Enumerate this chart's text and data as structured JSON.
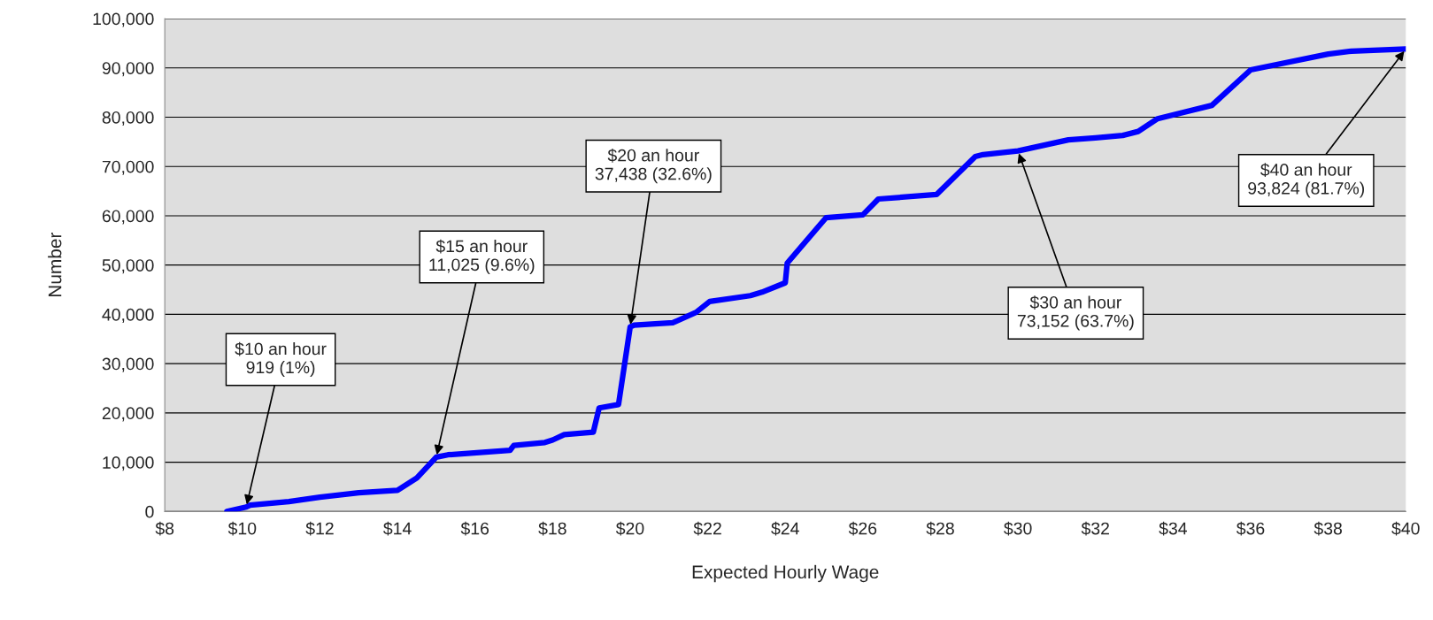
{
  "chart_data": {
    "type": "line",
    "xlabel": "Expected Hourly Wage",
    "ylabel": "Number",
    "x": [
      9.6,
      10.1,
      10.2,
      11.2,
      12,
      13,
      14,
      14.5,
      15,
      15.3,
      16.2,
      16.9,
      17,
      17.8,
      18,
      18.3,
      19.05,
      19.2,
      19.7,
      20,
      20.1,
      21.1,
      21.7,
      22.05,
      23.1,
      23.4,
      24,
      24.05,
      25.05,
      26,
      26.4,
      27.9,
      28.9,
      29.1,
      30,
      31.3,
      32,
      32.7,
      33.1,
      33.6,
      35,
      36,
      38,
      38.6,
      40
    ],
    "series": [
      {
        "color": "#0000ff",
        "values": [
          0,
          919,
          1300,
          2000,
          2900,
          3800,
          4300,
          6800,
          11025,
          11500,
          12000,
          12400,
          13400,
          14000,
          14500,
          15600,
          16100,
          21000,
          21700,
          37438,
          37800,
          38300,
          40400,
          42600,
          43800,
          44500,
          46400,
          50400,
          59600,
          60200,
          63400,
          64300,
          72000,
          72400,
          73152,
          75400,
          75800,
          76300,
          77100,
          79700,
          82400,
          89600,
          92800,
          93400,
          93824
        ]
      }
    ],
    "xlim": [
      8,
      40
    ],
    "xticks": [
      {
        "value": 8,
        "label": "$8"
      },
      {
        "value": 10,
        "label": "$10"
      },
      {
        "value": 12,
        "label": "$12"
      },
      {
        "value": 14,
        "label": "$14"
      },
      {
        "value": 16,
        "label": "$16"
      },
      {
        "value": 18,
        "label": "$18"
      },
      {
        "value": 20,
        "label": "$20"
      },
      {
        "value": 22,
        "label": "$22"
      },
      {
        "value": 24,
        "label": "$24"
      },
      {
        "value": 26,
        "label": "$26"
      },
      {
        "value": 28,
        "label": "$28"
      },
      {
        "value": 30,
        "label": "$30"
      },
      {
        "value": 32,
        "label": "$32"
      },
      {
        "value": 34,
        "label": "$34"
      },
      {
        "value": 36,
        "label": "$36"
      },
      {
        "value": 38,
        "label": "$38"
      },
      {
        "value": 40,
        "label": "$40"
      }
    ],
    "ylim": [
      0,
      100000
    ],
    "yticks": [
      0,
      {
        "value": 10000,
        "label": "10,000"
      },
      {
        "value": 20000,
        "label": "20,000"
      },
      {
        "value": 30000,
        "label": "30,000"
      },
      {
        "value": 40000,
        "label": "40,000"
      },
      {
        "value": 50000,
        "label": "50,000"
      },
      {
        "value": 60000,
        "label": "60,000"
      },
      {
        "value": 70000,
        "label": "70,000"
      },
      {
        "value": 80000,
        "label": "80,000"
      },
      {
        "value": 90000,
        "label": "90,000"
      },
      {
        "value": 100000,
        "label": "100,000"
      }
    ],
    "grid": "y",
    "legend": false,
    "marker": "none",
    "line_style": "solid",
    "annotations": [
      {
        "text": "$10 an hour\n919 (1%)",
        "x": 10.1,
        "y": 919
      },
      {
        "text": "$15 an hour\n11,025 (9.6%)",
        "x": 15,
        "y": 11025
      },
      {
        "text": "$20 an hour\n37,438 (32.6%)",
        "x": 20,
        "y": 37438
      },
      {
        "text": "$30 an hour\n73,152 (63.7%)",
        "x": 30,
        "y": 73152
      },
      {
        "text": "$40 an hour\n93,824 (81.7%)",
        "x": 40,
        "y": 93824
      }
    ]
  }
}
